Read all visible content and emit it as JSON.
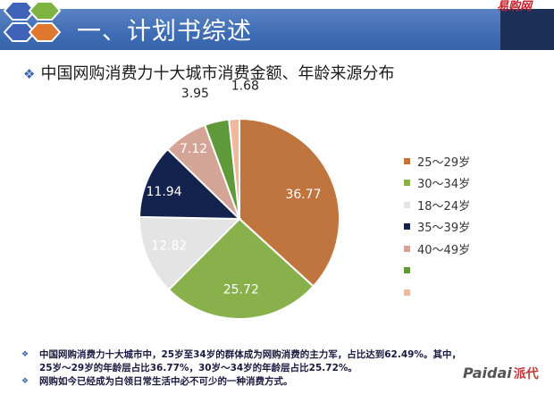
{
  "header": {
    "title": "一、计划书综述",
    "logo_text": "易购网",
    "colors": {
      "band": "#3f6db5",
      "right_block": "#1b2f57",
      "hex_blue": "#3f63b8",
      "hex_green": "#7fb341",
      "hex_orange": "#e0772f"
    }
  },
  "subtitle": {
    "bullet": "❖",
    "text": "中国网购消费力十大城市消费金额、年龄来源分布"
  },
  "chart_data": {
    "type": "pie",
    "title": "",
    "slices": [
      {
        "label": "25～29岁",
        "value": 36.77,
        "color": "#c0743e",
        "value_text": "36.77"
      },
      {
        "label": "30～34岁",
        "value": 25.72,
        "color": "#88b04b",
        "value_text": "25.72"
      },
      {
        "label": "18～24岁",
        "value": 12.82,
        "color": "#e4e4e4",
        "value_text": "12.82"
      },
      {
        "label": "35～39岁",
        "value": 11.94,
        "color": "#14234d",
        "value_text": "11.94"
      },
      {
        "label": "40～49岁",
        "value": 7.12,
        "color": "#d4a597",
        "value_text": "7.12"
      },
      {
        "label": "",
        "value": 3.95,
        "color": "#5f9a3a",
        "value_text": "3.95"
      },
      {
        "label": "",
        "value": 1.68,
        "color": "#f0b89e",
        "value_text": "1.68"
      }
    ],
    "legend_position": "right"
  },
  "footer": {
    "bullet": "❖",
    "lines": [
      "中国网购消费力十大城市中，25岁至34岁的群体成为网购消费的主力军，占比达到62.49%。其中，",
      "25岁～29岁的年龄层占比36.77%，30岁～34岁的年龄层占比25.72%。",
      "网购如今已经成为白领日常生活中必不可少的一种消费方式。"
    ]
  },
  "watermark": {
    "latin": "Paidai",
    "cn": "派代"
  }
}
